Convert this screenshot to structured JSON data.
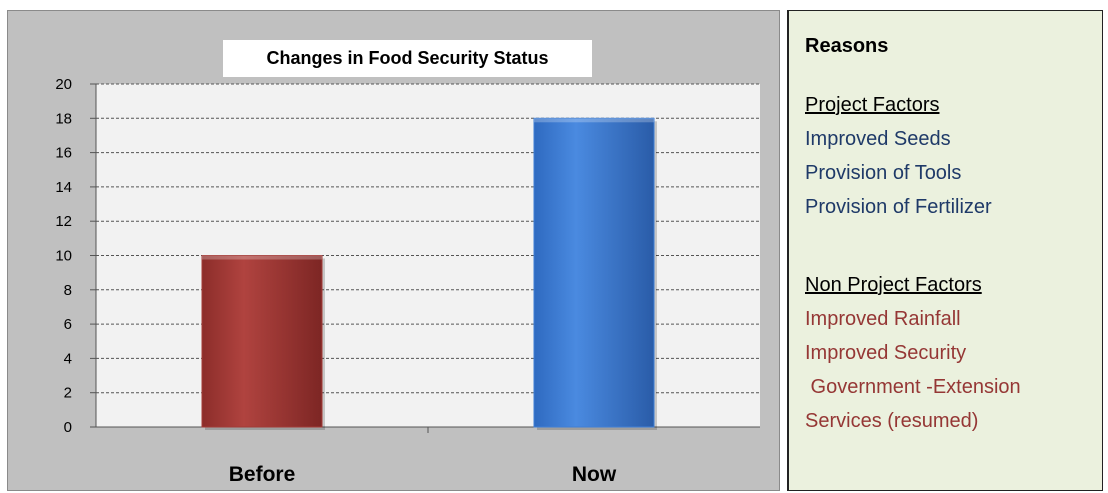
{
  "chart_data": {
    "type": "bar",
    "title": "Changes in Food Security Status",
    "categories": [
      "Before",
      "Now"
    ],
    "values": [
      10,
      18
    ],
    "colors": [
      "#a23a36",
      "#3f7fd6"
    ],
    "ylim": [
      0,
      20
    ],
    "yticks": [
      0,
      2,
      4,
      6,
      8,
      10,
      12,
      14,
      16,
      18,
      20
    ],
    "grid": true,
    "legend": "none"
  },
  "reasons": {
    "heading": "Reasons",
    "project_factors": {
      "label": "Project Factors",
      "items": [
        "Improved Seeds",
        "Provision of Tools",
        "Provision of Fertilizer"
      ]
    },
    "non_project_factors": {
      "label": "Non Project Factors",
      "items": [
        "Improved Rainfall",
        "Improved Security",
        " Government -Extension",
        "Services (resumed)"
      ]
    }
  },
  "colors": {
    "panel_bg": "#c0c0c0",
    "plot_bg": "#f2f2f2",
    "reasons_bg": "#ebf1de",
    "project_text": "#1f3a68",
    "non_project_text": "#953735"
  }
}
